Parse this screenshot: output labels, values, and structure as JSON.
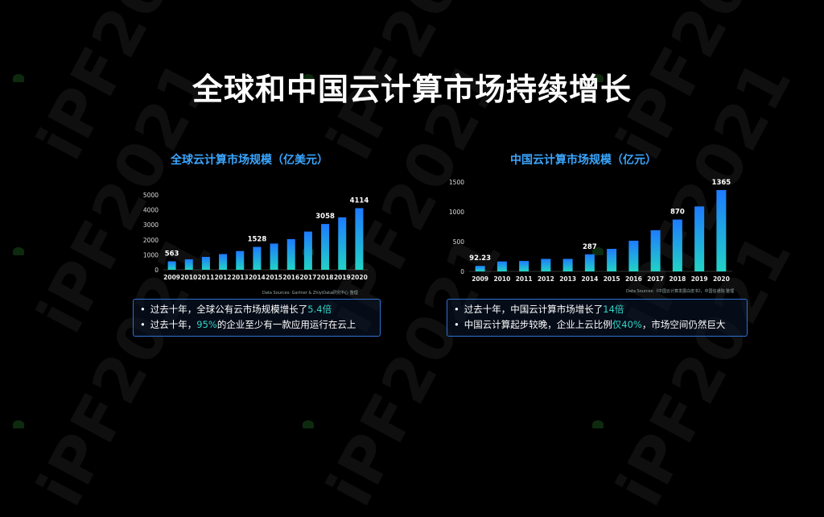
{
  "title": "全球和中国云计算市场持续增长",
  "watermark": "iPF2021",
  "colors": {
    "bar_top": "#1e7bff",
    "bar_bottom": "#22d3c5",
    "highlight": "#32d6c8",
    "title_blue": "#3aa6ff"
  },
  "chart_data": [
    {
      "type": "bar",
      "title": "全球云计算市场规模（亿美元）",
      "categories": [
        "2009",
        "2010",
        "2011",
        "2012",
        "2013",
        "2014",
        "2015",
        "2016",
        "2017",
        "2018",
        "2019",
        "2020"
      ],
      "values": [
        563,
        700,
        860,
        1050,
        1250,
        1528,
        1750,
        2050,
        2550,
        3058,
        3500,
        4114
      ],
      "data_labels": [
        "563",
        "",
        "",
        "",
        "",
        "1528",
        "",
        "",
        "",
        "3058",
        "",
        "4114"
      ],
      "yticks": [
        "0",
        "1000",
        "2000",
        "3000",
        "4000",
        "5000"
      ],
      "ylim": [
        0,
        5000
      ],
      "source": "Data Sources: Gartner & ZhiyiData研究中心 整理"
    },
    {
      "type": "bar",
      "title": "中国云计算市场规模（亿元）",
      "categories": [
        "2009",
        "2010",
        "2011",
        "2012",
        "2013",
        "2014",
        "2015",
        "2016",
        "2017",
        "2018",
        "2019",
        "2020"
      ],
      "values": [
        92.23,
        167,
        175,
        210,
        210,
        287,
        378,
        515,
        691,
        870,
        1090,
        1365
      ],
      "data_labels": [
        "92.23",
        "",
        "",
        "",
        "",
        "287",
        "",
        "",
        "",
        "870",
        "",
        "1365"
      ],
      "yticks": [
        "0",
        "500",
        "1000",
        "1500"
      ],
      "ylim": [
        0,
        1500
      ],
      "source": "Data Sources:《中国云计算发展白皮书》，中国信通院 整理"
    }
  ],
  "bullets": [
    [
      {
        "pre": "过去十年，全球公有云市场规模增长了",
        "hl": "5.4倍",
        "post": ""
      },
      {
        "pre": "过去十年，",
        "hl": "95%",
        "post": "的企业至少有一款应用运行在云上"
      }
    ],
    [
      {
        "pre": "过去十年，中国云计算市场增长了",
        "hl": "14倍",
        "post": ""
      },
      {
        "pre": "中国云计算起步较晚，企业上云比例",
        "hl": "仅40%",
        "post": "，市场空间仍然巨大"
      }
    ]
  ]
}
